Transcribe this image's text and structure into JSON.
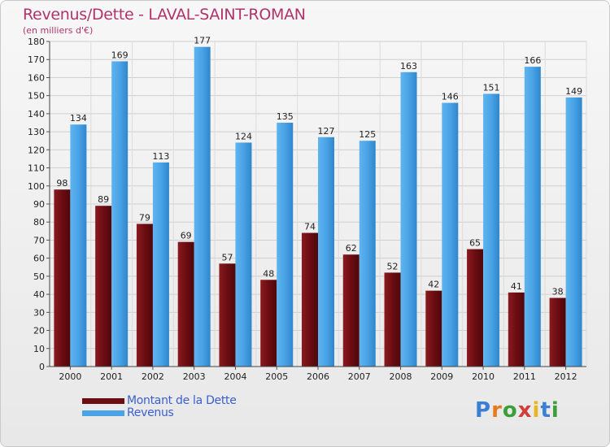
{
  "chart_data": {
    "type": "bar",
    "title": "Revenus/Dette - LAVAL-SAINT-ROMAN",
    "subtitle": "(en milliers d'€)",
    "categories": [
      "2000",
      "2001",
      "2002",
      "2003",
      "2004",
      "2005",
      "2006",
      "2007",
      "2008",
      "2009",
      "2010",
      "2011",
      "2012"
    ],
    "series": [
      {
        "name": "Montant de la Dette",
        "color": "#6b0d12",
        "values": [
          98,
          89,
          79,
          69,
          57,
          48,
          74,
          62,
          52,
          42,
          65,
          41,
          38
        ]
      },
      {
        "name": "Revenus",
        "color": "#4aa3e6",
        "values": [
          134,
          169,
          113,
          177,
          124,
          135,
          127,
          125,
          163,
          146,
          151,
          166,
          149
        ]
      }
    ],
    "ylim": [
      0,
      180
    ],
    "yticks": [
      0,
      10,
      20,
      30,
      40,
      50,
      60,
      70,
      80,
      90,
      100,
      110,
      120,
      130,
      140,
      150,
      160,
      170,
      180
    ],
    "grid": true,
    "legend_position": "bottom-left"
  },
  "watermark": {
    "letters": [
      "P",
      "r",
      "o",
      "x",
      "i",
      "t",
      "i"
    ],
    "colors": [
      "#3b7fd4",
      "#e87a1e",
      "#3a9f3a",
      "#d43b3b",
      "#e8b51e",
      "#3b7fd4",
      "#3a9f3a"
    ]
  }
}
